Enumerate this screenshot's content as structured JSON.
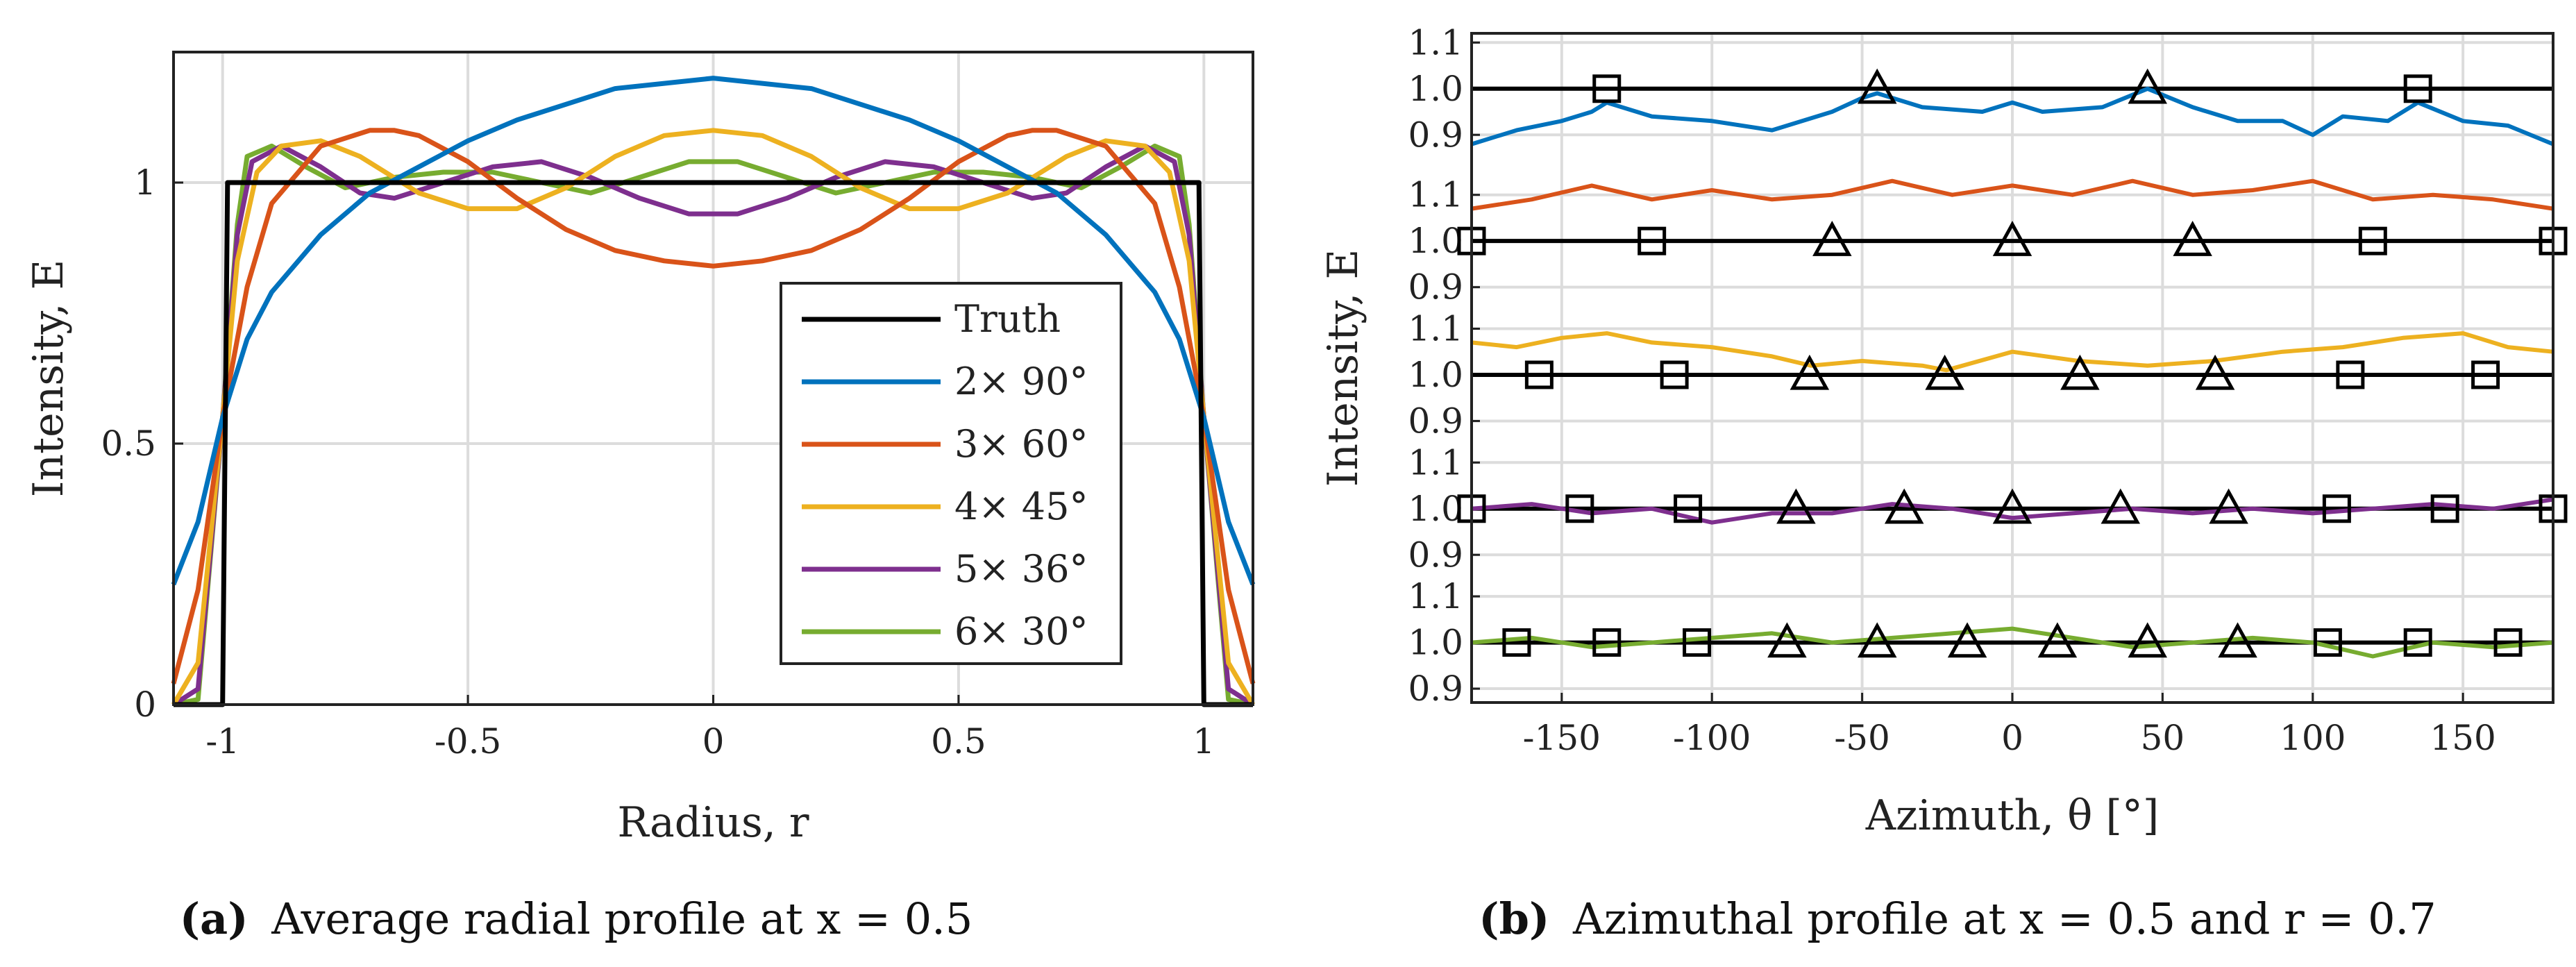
{
  "captions": {
    "a_tag": "(a)",
    "a_text": "Average radial profile at x = 0.5",
    "b_tag": "(b)",
    "b_text": "Azimuthal profile at x = 0.5 and r = 0.7"
  },
  "colors": {
    "truth": "#000000",
    "blue": "#0072BD",
    "orange": "#D95319",
    "yellow": "#EDB120",
    "purple": "#7E2F8E",
    "green": "#77AC30"
  },
  "chart_data": [
    {
      "type": "line",
      "panel": "a",
      "title": "",
      "xlabel": "Radius, r",
      "ylabel": "Intensity, E",
      "xlim": [
        -1.1,
        1.1
      ],
      "ylim": [
        0,
        1.25
      ],
      "x_ticks": [
        "-1",
        "-0.5",
        "0",
        "0.5",
        "1"
      ],
      "x_tick_values": [
        -1,
        -0.5,
        0,
        0.5,
        1
      ],
      "y_ticks": [
        "0",
        "0.5",
        "1"
      ],
      "y_tick_values": [
        0,
        0.5,
        1
      ],
      "grid": true,
      "legend_position": "lower-right",
      "series": [
        {
          "name": "Truth",
          "color": "#000000",
          "x": [
            -1.1,
            -1.0,
            -0.99,
            0.99,
            1.0,
            1.1
          ],
          "values": [
            0,
            0,
            1.0,
            1.0,
            0,
            0
          ]
        },
        {
          "name": "2× 90°",
          "color": "#0072BD",
          "x": [
            -1.1,
            -1.05,
            -1.0,
            -0.95,
            -0.9,
            -0.8,
            -0.7,
            -0.6,
            -0.5,
            -0.4,
            -0.3,
            -0.2,
            -0.1,
            0,
            0.1,
            0.2,
            0.3,
            0.4,
            0.5,
            0.6,
            0.7,
            0.8,
            0.9,
            0.95,
            1.0,
            1.05,
            1.1
          ],
          "values": [
            0.23,
            0.35,
            0.55,
            0.7,
            0.79,
            0.9,
            0.98,
            1.03,
            1.08,
            1.12,
            1.15,
            1.18,
            1.19,
            1.2,
            1.19,
            1.18,
            1.15,
            1.12,
            1.08,
            1.03,
            0.98,
            0.9,
            0.79,
            0.7,
            0.55,
            0.35,
            0.23
          ]
        },
        {
          "name": "3× 60°",
          "color": "#D95319",
          "x": [
            -1.1,
            -1.05,
            -1.0,
            -0.95,
            -0.9,
            -0.8,
            -0.7,
            -0.65,
            -0.6,
            -0.5,
            -0.4,
            -0.3,
            -0.2,
            -0.1,
            0,
            0.1,
            0.2,
            0.3,
            0.4,
            0.5,
            0.6,
            0.65,
            0.7,
            0.8,
            0.9,
            0.95,
            1.0,
            1.05,
            1.1
          ],
          "values": [
            0.04,
            0.22,
            0.55,
            0.8,
            0.96,
            1.07,
            1.1,
            1.1,
            1.09,
            1.04,
            0.97,
            0.91,
            0.87,
            0.85,
            0.84,
            0.85,
            0.87,
            0.91,
            0.97,
            1.04,
            1.09,
            1.1,
            1.1,
            1.07,
            0.96,
            0.8,
            0.55,
            0.22,
            0.04
          ]
        },
        {
          "name": "4× 45°",
          "color": "#EDB120",
          "x": [
            -1.1,
            -1.05,
            -1.0,
            -0.97,
            -0.93,
            -0.88,
            -0.8,
            -0.72,
            -0.6,
            -0.5,
            -0.4,
            -0.3,
            -0.2,
            -0.1,
            0,
            0.1,
            0.2,
            0.3,
            0.4,
            0.5,
            0.6,
            0.72,
            0.8,
            0.88,
            0.93,
            0.97,
            1.0,
            1.05,
            1.1
          ],
          "values": [
            0.0,
            0.08,
            0.55,
            0.85,
            1.02,
            1.07,
            1.08,
            1.05,
            0.98,
            0.95,
            0.95,
            0.99,
            1.05,
            1.09,
            1.1,
            1.09,
            1.05,
            0.99,
            0.95,
            0.95,
            0.98,
            1.05,
            1.08,
            1.07,
            1.02,
            0.85,
            0.55,
            0.08,
            0.0
          ]
        },
        {
          "name": "5× 36°",
          "color": "#7E2F8E",
          "x": [
            -1.1,
            -1.05,
            -1.0,
            -0.97,
            -0.94,
            -0.88,
            -0.8,
            -0.72,
            -0.65,
            -0.55,
            -0.45,
            -0.35,
            -0.25,
            -0.15,
            -0.05,
            0,
            0.05,
            0.15,
            0.25,
            0.35,
            0.45,
            0.55,
            0.65,
            0.72,
            0.8,
            0.88,
            0.94,
            0.97,
            1.0,
            1.05,
            1.1
          ],
          "values": [
            0.0,
            0.03,
            0.55,
            0.9,
            1.04,
            1.07,
            1.03,
            0.98,
            0.97,
            1.0,
            1.03,
            1.04,
            1.01,
            0.97,
            0.94,
            0.94,
            0.94,
            0.97,
            1.01,
            1.04,
            1.03,
            1.0,
            0.97,
            0.98,
            1.03,
            1.07,
            1.04,
            0.9,
            0.55,
            0.03,
            0.0
          ]
        },
        {
          "name": "6× 30°",
          "color": "#77AC30",
          "x": [
            -1.1,
            -1.05,
            -1.0,
            -0.97,
            -0.95,
            -0.9,
            -0.83,
            -0.75,
            -0.65,
            -0.55,
            -0.45,
            -0.35,
            -0.25,
            -0.15,
            -0.05,
            0,
            0.05,
            0.15,
            0.25,
            0.35,
            0.45,
            0.55,
            0.65,
            0.75,
            0.83,
            0.9,
            0.95,
            0.97,
            1.0,
            1.05,
            1.1
          ],
          "values": [
            0.0,
            0.01,
            0.55,
            0.92,
            1.05,
            1.07,
            1.03,
            0.99,
            1.01,
            1.02,
            1.02,
            1.0,
            0.98,
            1.01,
            1.04,
            1.04,
            1.04,
            1.01,
            0.98,
            1.0,
            1.02,
            1.02,
            1.01,
            0.99,
            1.03,
            1.07,
            1.05,
            0.92,
            0.55,
            0.01,
            0.0
          ]
        }
      ],
      "legend": [
        "Truth",
        "2× 90°",
        "3× 60°",
        "4× 45°",
        "5× 36°",
        "6× 30°"
      ]
    },
    {
      "type": "line",
      "panel": "b",
      "title": "",
      "xlabel": "Azimuth, θ [°]",
      "ylabel": "Intensity, E",
      "xlim": [
        -180,
        180
      ],
      "x_ticks": [
        "-150",
        "-100",
        "-50",
        "0",
        "50",
        "100",
        "150"
      ],
      "x_tick_values": [
        -150,
        -100,
        -50,
        0,
        50,
        100,
        150
      ],
      "y_tick_labels": [
        "1.1",
        "1.0",
        "0.9"
      ],
      "y_tick_values": [
        1.1,
        1.0,
        0.9
      ],
      "grid": true,
      "subplots": [
        {
          "name": "2× 90°",
          "color": "#0072BD",
          "ylim": [
            0.83,
            1.12
          ],
          "x": [
            -180,
            -165,
            -150,
            -140,
            -135,
            -120,
            -100,
            -80,
            -60,
            -50,
            -45,
            -30,
            -10,
            0,
            10,
            30,
            45,
            60,
            75,
            90,
            100,
            110,
            125,
            135,
            150,
            165,
            180
          ],
          "values": [
            0.88,
            0.91,
            0.93,
            0.95,
            0.97,
            0.94,
            0.93,
            0.91,
            0.95,
            0.98,
            0.99,
            0.96,
            0.95,
            0.97,
            0.95,
            0.96,
            1.0,
            0.96,
            0.93,
            0.93,
            0.9,
            0.94,
            0.93,
            0.97,
            0.93,
            0.92,
            0.88
          ],
          "triangles": [
            -45,
            45
          ],
          "squares": [
            -135,
            135
          ]
        },
        {
          "name": "3× 60°",
          "color": "#D95319",
          "ylim": [
            0.87,
            1.16
          ],
          "x": [
            -180,
            -160,
            -140,
            -120,
            -100,
            -80,
            -60,
            -40,
            -20,
            0,
            20,
            40,
            60,
            80,
            100,
            120,
            140,
            160,
            180
          ],
          "values": [
            1.07,
            1.09,
            1.12,
            1.09,
            1.11,
            1.09,
            1.1,
            1.13,
            1.1,
            1.12,
            1.1,
            1.13,
            1.1,
            1.11,
            1.13,
            1.09,
            1.1,
            1.09,
            1.07
          ],
          "triangles": [
            -60,
            0,
            60
          ],
          "squares": [
            -180,
            -120,
            120,
            180
          ]
        },
        {
          "name": "4× 45°",
          "color": "#EDB120",
          "ylim": [
            0.87,
            1.16
          ],
          "x": [
            -180,
            -165,
            -150,
            -135,
            -120,
            -100,
            -80,
            -67,
            -50,
            -30,
            -22,
            0,
            22,
            45,
            67,
            90,
            110,
            130,
            150,
            165,
            180
          ],
          "values": [
            1.07,
            1.06,
            1.08,
            1.09,
            1.07,
            1.06,
            1.04,
            1.02,
            1.03,
            1.02,
            1.01,
            1.05,
            1.03,
            1.02,
            1.03,
            1.05,
            1.06,
            1.08,
            1.09,
            1.06,
            1.05
          ],
          "triangles": [
            -67.5,
            -22.5,
            22.5,
            67.5
          ],
          "squares": [
            -157.5,
            -112.5,
            112.5,
            157.5
          ]
        },
        {
          "name": "5× 36°",
          "color": "#7E2F8E",
          "ylim": [
            0.87,
            1.16
          ],
          "x": [
            -180,
            -160,
            -140,
            -120,
            -100,
            -80,
            -60,
            -40,
            -20,
            0,
            20,
            40,
            60,
            80,
            100,
            120,
            140,
            160,
            180
          ],
          "values": [
            1.0,
            1.01,
            0.99,
            1.0,
            0.97,
            0.99,
            0.99,
            1.01,
            1.0,
            0.98,
            0.99,
            1.0,
            0.99,
            1.0,
            0.99,
            1.0,
            1.01,
            1.0,
            1.02
          ],
          "triangles": [
            -72,
            -36,
            0,
            36,
            72
          ],
          "squares": [
            -180,
            -144,
            -108,
            108,
            144,
            180
          ]
        },
        {
          "name": "6× 30°",
          "color": "#77AC30",
          "ylim": [
            0.87,
            1.16
          ],
          "x": [
            -180,
            -160,
            -140,
            -120,
            -100,
            -80,
            -60,
            -40,
            -20,
            0,
            20,
            40,
            60,
            80,
            100,
            120,
            140,
            160,
            180
          ],
          "values": [
            1.0,
            1.01,
            0.99,
            1.0,
            1.01,
            1.02,
            1.0,
            1.01,
            1.02,
            1.03,
            1.01,
            0.99,
            1.0,
            1.01,
            1.0,
            0.97,
            1.0,
            0.99,
            1.0
          ],
          "triangles": [
            -75,
            -45,
            -15,
            15,
            45,
            75
          ],
          "squares": [
            -165,
            -135,
            -105,
            105,
            135,
            165
          ]
        }
      ]
    }
  ]
}
